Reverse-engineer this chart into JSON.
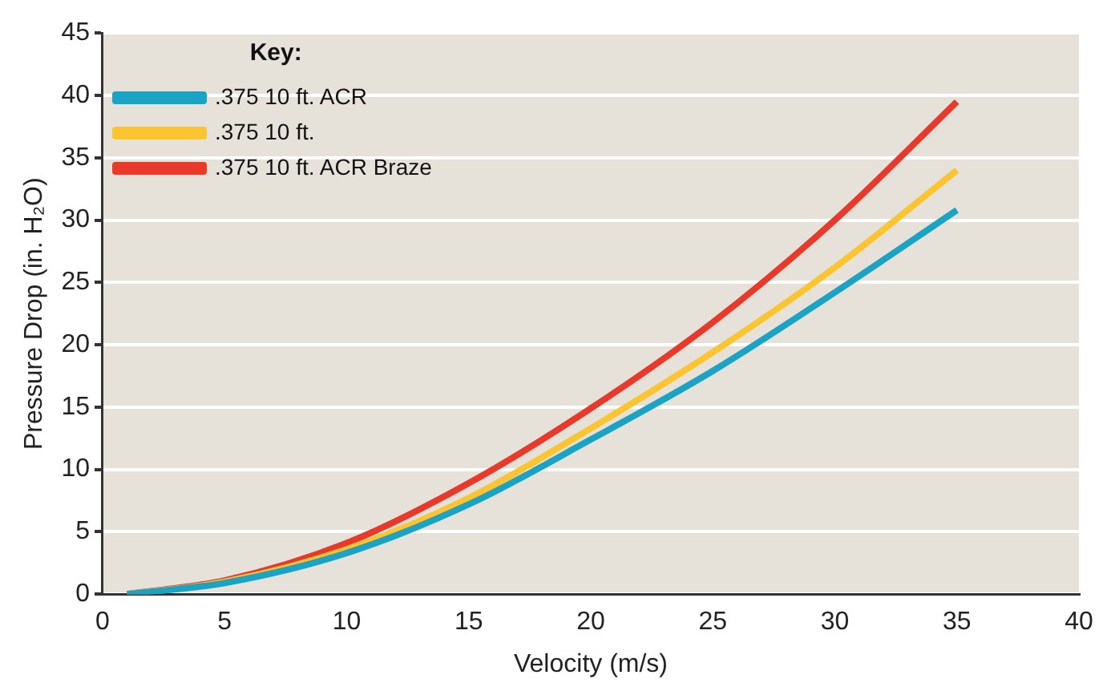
{
  "chart_data": {
    "type": "line",
    "xlabel": "Velocity (m/s)",
    "ylabel": "Pressure Drop (in. H₂O)",
    "legend_title": "Key:",
    "legend": "top left",
    "grid": "y",
    "marker": "none",
    "line_style": "solid",
    "xlim": [
      0,
      40
    ],
    "xticks": [
      0,
      5,
      10,
      15,
      20,
      25,
      30,
      35,
      40
    ],
    "ylim": [
      0,
      45
    ],
    "yticks": [
      0,
      5,
      10,
      15,
      20,
      25,
      30,
      35,
      40,
      45
    ],
    "x": [
      1,
      5,
      10,
      15,
      20,
      25,
      30,
      35
    ],
    "series": [
      {
        "name": ".375 10 ft. ACR",
        "color": "#1ba3c6",
        "values": [
          0,
          0.9,
          3.3,
          7.2,
          12.4,
          17.9,
          24.2,
          30.8
        ]
      },
      {
        "name": ".375 10 ft.",
        "color": "#fbc531",
        "values": [
          0,
          1.0,
          3.6,
          7.7,
          13.3,
          19.4,
          26.2,
          34.0
        ]
      },
      {
        "name": ".375 10 ft. ACR Braze",
        "color": "#e8392b",
        "values": [
          0,
          1.1,
          4.1,
          8.9,
          14.9,
          21.8,
          30.0,
          39.5
        ]
      }
    ]
  }
}
